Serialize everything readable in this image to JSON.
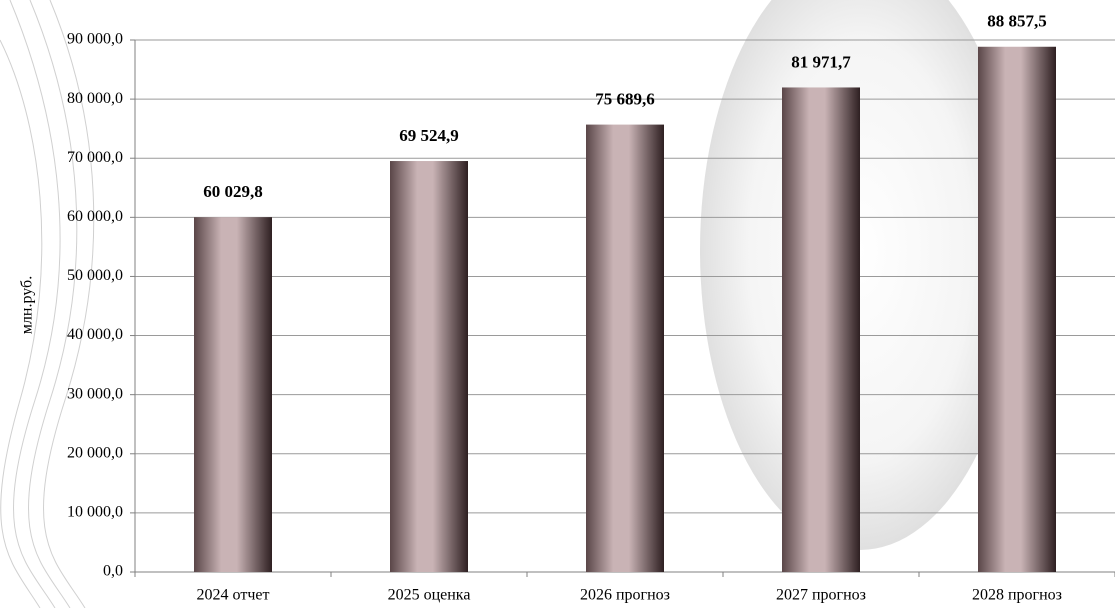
{
  "chart_data": {
    "type": "bar",
    "y_label": "млн.руб.",
    "categories": [
      "2024 отчет",
      "2025 оценка",
      "2026 прогноз",
      "2027 прогноз",
      "2028 прогноз"
    ],
    "values": [
      60029.8,
      69524.9,
      75689.6,
      81971.7,
      88857.5
    ],
    "value_labels": [
      "60 029,8",
      "69 524,9",
      "75 689,6",
      "81 971,7",
      "88 857,5"
    ],
    "color": "#c9b3b5",
    "ylim": [
      0,
      90000
    ],
    "yticks": [
      {
        "value": 0,
        "label": "0,0"
      },
      {
        "value": 10000,
        "label": "10 000,0"
      },
      {
        "value": 20000,
        "label": "20 000,0"
      },
      {
        "value": 30000,
        "label": "30 000,0"
      },
      {
        "value": 40000,
        "label": "40 000,0"
      },
      {
        "value": 50000,
        "label": "50 000,0"
      },
      {
        "value": 60000,
        "label": "60 000,0"
      },
      {
        "value": 70000,
        "label": "70 000,0"
      },
      {
        "value": 80000,
        "label": "80 000,0"
      },
      {
        "value": 90000,
        "label": "90 000,0"
      }
    ],
    "grid": true
  }
}
